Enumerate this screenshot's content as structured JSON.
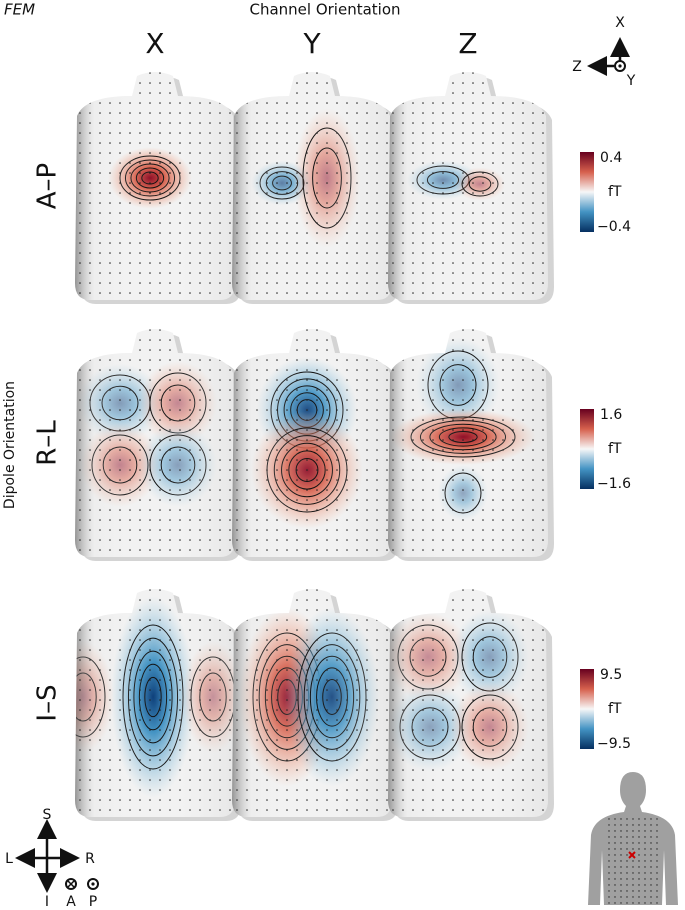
{
  "header": {
    "label": "FEM",
    "title": "Channel Orientation"
  },
  "columns": [
    "X",
    "Y",
    "Z"
  ],
  "row_axis_title": "Dipole Orientation",
  "rows": [
    {
      "label": "A–P",
      "colorbar": {
        "max": "0.4",
        "unit": "fT",
        "min": "−0.4"
      }
    },
    {
      "label": "R–L",
      "colorbar": {
        "max": "1.6",
        "unit": "fT",
        "min": "−1.6"
      }
    },
    {
      "label": "I–S",
      "colorbar": {
        "max": "9.5",
        "unit": "fT",
        "min": "−9.5"
      }
    }
  ],
  "channel_axes": {
    "x": "X",
    "z": "Z",
    "y": "Y"
  },
  "body_axes": {
    "superior": "S",
    "left": "L",
    "right": "R",
    "inferior": "I",
    "anterior": "A",
    "posterior": "P"
  }
}
